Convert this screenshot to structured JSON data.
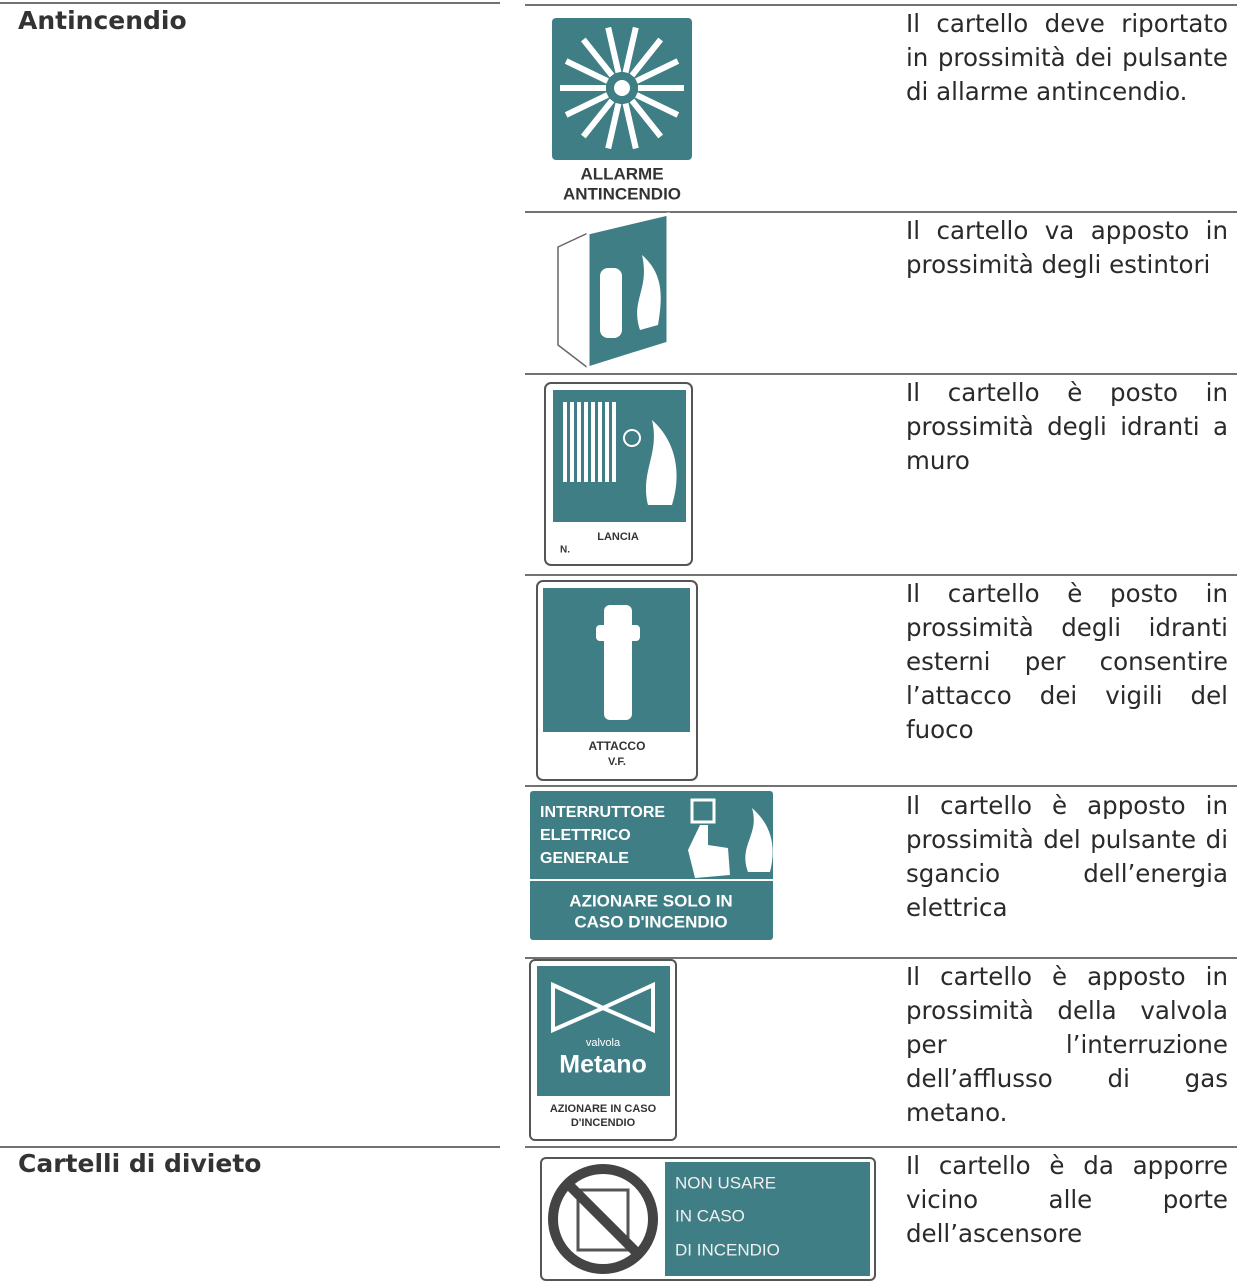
{
  "sections": [
    {
      "title": "Antincendio",
      "rows": [
        {
          "sign_text": [
            "ALLARME",
            "ANTINCENDIO"
          ],
          "description": [
            "Il cartello deve riportato",
            "in prossimità dei pulsante",
            "di allarme antincendio."
          ]
        },
        {
          "sign_text": [],
          "description": [
            "Il cartello va apposto in",
            "prossimità degli estintori"
          ]
        },
        {
          "sign_text": [
            "LANCIA",
            "N."
          ],
          "description": [
            "Il cartello è posto in",
            "prossimità degli idranti a",
            "muro"
          ]
        },
        {
          "sign_text": [
            "ATTACCO",
            "V.F."
          ],
          "description": [
            "Il cartello è posto in",
            "prossimità degli idranti",
            "esterni per consentire",
            "l’attacco dei vigili del",
            "fuoco"
          ]
        },
        {
          "sign_text": [
            "INTERRUTTORE",
            "ELETTRICO",
            "GENERALE",
            "AZIONARE SOLO IN",
            "CASO D'INCENDIO"
          ],
          "description": [
            "Il cartello è apposto in",
            "prossimità del pulsante di",
            "sgancio dell’energia",
            "elettrica"
          ]
        },
        {
          "sign_text": [
            "valvola",
            "Metano",
            "AZIONARE IN CASO",
            "D'INCENDIO"
          ],
          "description": [
            "Il cartello è apposto in",
            "prossimità della valvola",
            "per l’interruzione",
            "dell’afflusso di gas",
            "metano."
          ]
        }
      ]
    },
    {
      "title": "Cartelli di divieto",
      "rows": [
        {
          "sign_text": [
            "NON USARE",
            "IN CASO",
            "DI INCENDIO"
          ],
          "description": [
            "Il cartello è da apporre",
            "vicino alle porte",
            "dell’ascensore"
          ]
        }
      ]
    }
  ]
}
